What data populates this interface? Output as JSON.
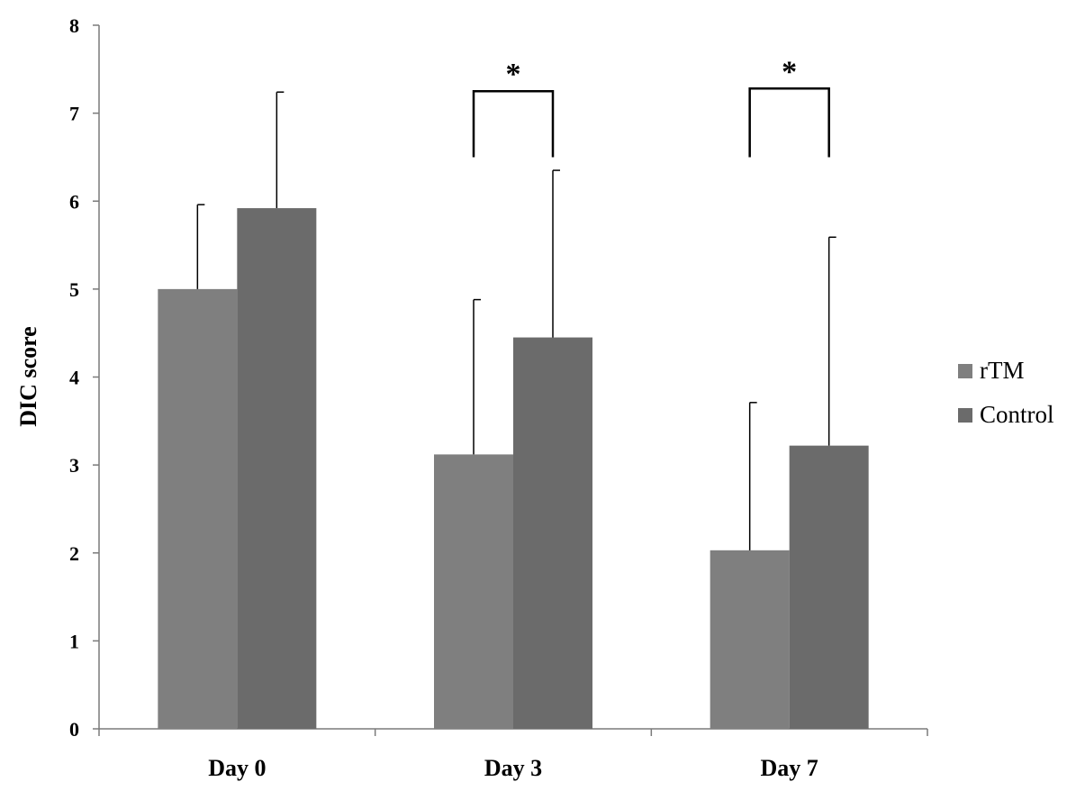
{
  "chart_data": {
    "type": "bar",
    "title": "",
    "xlabel": "",
    "ylabel": "DIC score",
    "ylim": [
      0,
      8
    ],
    "yticks": [
      0,
      1,
      2,
      3,
      4,
      5,
      6,
      7,
      8
    ],
    "categories": [
      "Day 0",
      "Day 3",
      "Day 7"
    ],
    "series": [
      {
        "name": "rTM",
        "color": "#7f7f7f",
        "values": [
          5.0,
          3.12,
          2.03
        ],
        "errors": [
          0.96,
          1.76,
          1.68
        ]
      },
      {
        "name": "Control",
        "color": "#6b6b6b",
        "values": [
          5.92,
          4.45,
          3.22
        ],
        "errors": [
          1.32,
          1.9,
          2.37
        ]
      }
    ],
    "annotations": [
      {
        "category": "Day 3",
        "text": "*",
        "bracket_top": 7.25,
        "bracket_bottom": 6.5
      },
      {
        "category": "Day 7",
        "text": "*",
        "bracket_top": 7.28,
        "bracket_bottom": 6.5
      }
    ],
    "legend_position": "right",
    "grid": false
  }
}
